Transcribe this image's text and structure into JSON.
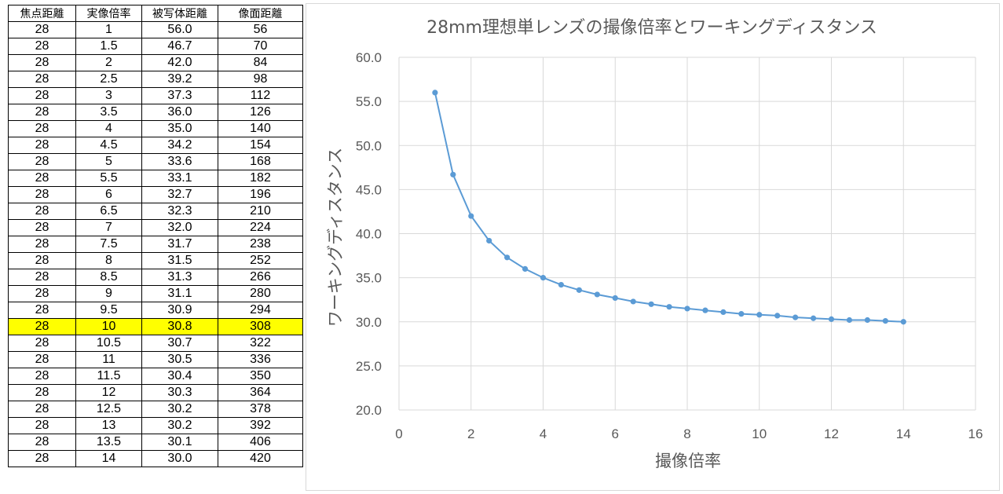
{
  "table": {
    "headers": [
      "焦点距離",
      "実像倍率",
      "被写体距離",
      "像面距離"
    ],
    "highlight_row": 18,
    "highlight_color": "#ffff00",
    "rows": [
      [
        "28",
        "1",
        "56.0",
        "56"
      ],
      [
        "28",
        "1.5",
        "46.7",
        "70"
      ],
      [
        "28",
        "2",
        "42.0",
        "84"
      ],
      [
        "28",
        "2.5",
        "39.2",
        "98"
      ],
      [
        "28",
        "3",
        "37.3",
        "112"
      ],
      [
        "28",
        "3.5",
        "36.0",
        "126"
      ],
      [
        "28",
        "4",
        "35.0",
        "140"
      ],
      [
        "28",
        "4.5",
        "34.2",
        "154"
      ],
      [
        "28",
        "5",
        "33.6",
        "168"
      ],
      [
        "28",
        "5.5",
        "33.1",
        "182"
      ],
      [
        "28",
        "6",
        "32.7",
        "196"
      ],
      [
        "28",
        "6.5",
        "32.3",
        "210"
      ],
      [
        "28",
        "7",
        "32.0",
        "224"
      ],
      [
        "28",
        "7.5",
        "31.7",
        "238"
      ],
      [
        "28",
        "8",
        "31.5",
        "252"
      ],
      [
        "28",
        "8.5",
        "31.3",
        "266"
      ],
      [
        "28",
        "9",
        "31.1",
        "280"
      ],
      [
        "28",
        "9.5",
        "30.9",
        "294"
      ],
      [
        "28",
        "10",
        "30.8",
        "308"
      ],
      [
        "28",
        "10.5",
        "30.7",
        "322"
      ],
      [
        "28",
        "11",
        "30.5",
        "336"
      ],
      [
        "28",
        "11.5",
        "30.4",
        "350"
      ],
      [
        "28",
        "12",
        "30.3",
        "364"
      ],
      [
        "28",
        "12.5",
        "30.2",
        "378"
      ],
      [
        "28",
        "13",
        "30.2",
        "392"
      ],
      [
        "28",
        "13.5",
        "30.1",
        "406"
      ],
      [
        "28",
        "14",
        "30.0",
        "420"
      ]
    ]
  },
  "chart_data": {
    "type": "scatter",
    "title": "28mm理想単レンズの撮像倍率とワーキングディスタンス",
    "xlabel": "撮像倍率",
    "ylabel": "ワーキングディスタンス",
    "xlim": [
      0,
      16
    ],
    "ylim": [
      20,
      60
    ],
    "xticks": [
      0,
      2,
      4,
      6,
      8,
      10,
      12,
      14,
      16
    ],
    "yticks": [
      20,
      25,
      30,
      35,
      40,
      45,
      50,
      55,
      60
    ],
    "ytick_labels": [
      "20.0",
      "25.0",
      "30.0",
      "35.0",
      "40.0",
      "45.0",
      "50.0",
      "55.0",
      "60.0"
    ],
    "grid": true,
    "series_color": "#5b9bd5",
    "series": [
      {
        "name": "被写体距離",
        "x": [
          1,
          1.5,
          2,
          2.5,
          3,
          3.5,
          4,
          4.5,
          5,
          5.5,
          6,
          6.5,
          7,
          7.5,
          8,
          8.5,
          9,
          9.5,
          10,
          10.5,
          11,
          11.5,
          12,
          12.5,
          13,
          13.5,
          14
        ],
        "y": [
          56.0,
          46.7,
          42.0,
          39.2,
          37.3,
          36.0,
          35.0,
          34.2,
          33.6,
          33.1,
          32.7,
          32.3,
          32.0,
          31.7,
          31.5,
          31.3,
          31.1,
          30.9,
          30.8,
          30.7,
          30.5,
          30.4,
          30.3,
          30.2,
          30.2,
          30.1,
          30.0
        ]
      }
    ]
  }
}
